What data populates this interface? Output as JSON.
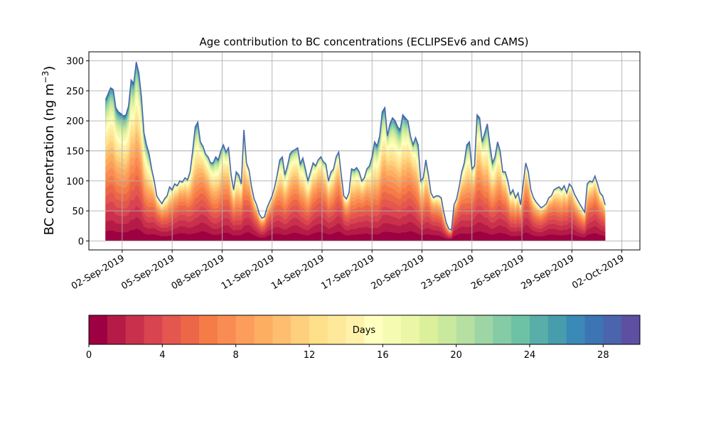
{
  "chart_data": {
    "type": "area",
    "title": "Age contribution to BC concentrations (ECLIPSEv6 and CAMS)",
    "ylabel": "BC concentration (ng m",
    "ylabel_superscript": "−3",
    "ylabel_close": ")",
    "ylim": [
      -15,
      315
    ],
    "yticks": [
      0,
      50,
      100,
      150,
      200,
      250,
      300
    ],
    "x_start": "01-Sep-2019",
    "x_end": "01-Oct-2019",
    "xlim": [
      "31-Aug-2019 00:00",
      "03-Oct-2019 02:00"
    ],
    "xticks": [
      "02-Sep-2019",
      "05-Sep-2019",
      "08-Sep-2019",
      "11-Sep-2019",
      "14-Sep-2019",
      "17-Sep-2019",
      "20-Sep-2019",
      "23-Sep-2019",
      "26-Sep-2019",
      "29-Sep-2019",
      "02-Oct-2019"
    ],
    "grid": true,
    "series_note": "30 stacked age bins (0-30 days), colored by colorbar",
    "total": [
      235,
      245,
      255,
      252,
      222,
      215,
      212,
      208,
      210,
      225,
      268,
      262,
      298,
      280,
      240,
      180,
      160,
      145,
      120,
      100,
      75,
      68,
      62,
      70,
      75,
      90,
      85,
      95,
      92,
      100,
      98,
      105,
      102,
      115,
      150,
      190,
      198,
      165,
      158,
      145,
      140,
      130,
      130,
      140,
      135,
      150,
      160,
      148,
      155,
      110,
      85,
      115,
      110,
      95,
      185,
      130,
      118,
      90,
      70,
      60,
      45,
      38,
      40,
      55,
      65,
      75,
      90,
      110,
      135,
      140,
      110,
      125,
      145,
      150,
      152,
      155,
      128,
      138,
      120,
      100,
      115,
      130,
      125,
      135,
      140,
      132,
      128,
      100,
      115,
      120,
      140,
      148,
      110,
      75,
      70,
      80,
      120,
      118,
      122,
      115,
      100,
      105,
      120,
      125,
      140,
      165,
      158,
      175,
      215,
      222,
      175,
      195,
      205,
      200,
      190,
      185,
      210,
      205,
      200,
      175,
      160,
      172,
      160,
      100,
      105,
      135,
      110,
      80,
      72,
      75,
      75,
      72,
      48,
      30,
      20,
      18,
      60,
      70,
      90,
      115,
      130,
      160,
      165,
      120,
      125,
      210,
      205,
      165,
      180,
      195,
      160,
      130,
      140,
      165,
      150,
      115,
      115,
      100,
      78,
      85,
      72,
      80,
      60,
      95,
      130,
      115,
      85,
      72,
      65,
      60,
      55,
      58,
      62,
      72,
      75,
      85,
      88,
      90,
      85,
      92,
      80,
      95,
      90,
      78,
      70,
      62,
      55,
      48,
      95,
      100,
      98,
      108,
      95,
      80,
      75,
      60
    ],
    "colorbar": {
      "label": "Days",
      "min": 0,
      "max": 30,
      "ticks": [
        0,
        4,
        8,
        12,
        16,
        20,
        24,
        28
      ],
      "colors": [
        "#9e0142",
        "#b41b47",
        "#c9304c",
        "#d84450",
        "#e4574e",
        "#ec6748",
        "#f57b47",
        "#f98c52",
        "#fc9d5b",
        "#fdae61",
        "#fdbf6f",
        "#fed07e",
        "#fee08b",
        "#fee89a",
        "#fff1aa",
        "#ffffbf",
        "#f6fbb2",
        "#ebf7a5",
        "#dcf09c",
        "#c9e99f",
        "#b5e0a2",
        "#9dd6a4",
        "#84cba6",
        "#6dc2a5",
        "#5aaea9",
        "#479dac",
        "#3a89b6",
        "#3d75b4",
        "#4a65ad",
        "#5e4fa2"
      ]
    }
  }
}
